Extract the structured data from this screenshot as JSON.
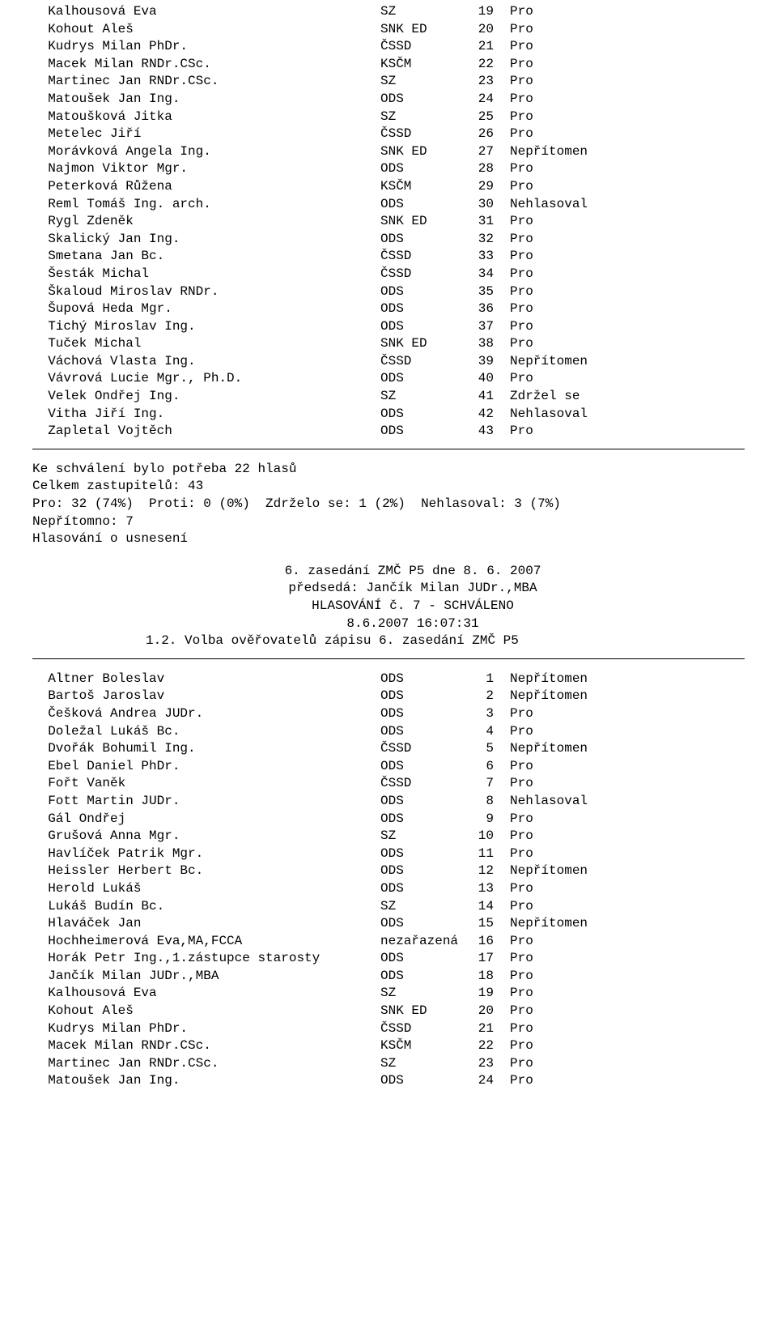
{
  "section1": {
    "rows": [
      {
        "name": "Kalhousová Eva",
        "party": "SZ",
        "num": "19",
        "vote": "Pro"
      },
      {
        "name": "Kohout Aleš",
        "party": "SNK ED",
        "num": "20",
        "vote": "Pro"
      },
      {
        "name": "Kudrys Milan PhDr.",
        "party": "ČSSD",
        "num": "21",
        "vote": "Pro"
      },
      {
        "name": "Macek Milan RNDr.CSc.",
        "party": "KSČM",
        "num": "22",
        "vote": "Pro"
      },
      {
        "name": "Martinec Jan RNDr.CSc.",
        "party": "SZ",
        "num": "23",
        "vote": "Pro"
      },
      {
        "name": "Matoušek Jan Ing.",
        "party": "ODS",
        "num": "24",
        "vote": "Pro"
      },
      {
        "name": "Matoušková Jitka",
        "party": "SZ",
        "num": "25",
        "vote": "Pro"
      },
      {
        "name": "Metelec Jiří",
        "party": "ČSSD",
        "num": "26",
        "vote": "Pro"
      },
      {
        "name": "Morávková Angela Ing.",
        "party": "SNK ED",
        "num": "27",
        "vote": "Nepřítomen"
      },
      {
        "name": "Najmon Viktor Mgr.",
        "party": "ODS",
        "num": "28",
        "vote": "Pro"
      },
      {
        "name": "Peterková Růžena",
        "party": "KSČM",
        "num": "29",
        "vote": "Pro"
      },
      {
        "name": "Reml Tomáš Ing. arch.",
        "party": "ODS",
        "num": "30",
        "vote": "Nehlasoval"
      },
      {
        "name": "Rygl Zdeněk",
        "party": "SNK ED",
        "num": "31",
        "vote": "Pro"
      },
      {
        "name": "Skalický Jan Ing.",
        "party": "ODS",
        "num": "32",
        "vote": "Pro"
      },
      {
        "name": "Smetana Jan Bc.",
        "party": "ČSSD",
        "num": "33",
        "vote": "Pro"
      },
      {
        "name": "Šesták Michal",
        "party": "ČSSD",
        "num": "34",
        "vote": "Pro"
      },
      {
        "name": "Škaloud Miroslav RNDr.",
        "party": "ODS",
        "num": "35",
        "vote": "Pro"
      },
      {
        "name": "Šupová Heda Mgr.",
        "party": "ODS",
        "num": "36",
        "vote": "Pro"
      },
      {
        "name": "Tichý Miroslav Ing.",
        "party": "ODS",
        "num": "37",
        "vote": "Pro"
      },
      {
        "name": "Tuček Michal",
        "party": "SNK ED",
        "num": "38",
        "vote": "Pro"
      },
      {
        "name": "Váchová Vlasta Ing.",
        "party": "ČSSD",
        "num": "39",
        "vote": "Nepřítomen"
      },
      {
        "name": "Vávrová Lucie Mgr., Ph.D.",
        "party": "ODS",
        "num": "40",
        "vote": "Pro"
      },
      {
        "name": "Velek Ondřej Ing.",
        "party": "SZ",
        "num": "41",
        "vote": "Zdržel se"
      },
      {
        "name": "Vitha Jiří Ing.",
        "party": "ODS",
        "num": "42",
        "vote": "Nehlasoval"
      },
      {
        "name": "Zapletal Vojtěch",
        "party": "ODS",
        "num": "43",
        "vote": "Pro"
      }
    ]
  },
  "summary": {
    "line1": "Ke schválení bylo potřeba 22 hlasů",
    "line2": "Celkem zastupitelů: 43",
    "line3": "Pro: 32 (74%)  Proti: 0 (0%)  Zdrželo se: 1 (2%)  Nehlasoval: 3 (7%)",
    "line4": "Nepřítomno: 7",
    "line5": "Hlasování o usnesení"
  },
  "header": {
    "l1": "6. zasedání ZMČ P5 dne 8. 6. 2007",
    "l2": "předsedá: Jančík Milan JUDr.,MBA",
    "l3": "HLASOVÁNÍ č. 7 - SCHVÁLENO",
    "l4": "8.6.2007 16:07:31",
    "l5": "1.2. Volba ověřovatelů zápisu 6. zasedání ZMČ P5"
  },
  "section2": {
    "rows": [
      {
        "name": "Altner Boleslav",
        "party": "ODS",
        "num": "1",
        "vote": "Nepřítomen"
      },
      {
        "name": "Bartoš Jaroslav",
        "party": "ODS",
        "num": "2",
        "vote": "Nepřítomen"
      },
      {
        "name": "Češková Andrea JUDr.",
        "party": "ODS",
        "num": "3",
        "vote": "Pro"
      },
      {
        "name": "Doležal Lukáš Bc.",
        "party": "ODS",
        "num": "4",
        "vote": "Pro"
      },
      {
        "name": "Dvořák Bohumil Ing.",
        "party": "ČSSD",
        "num": "5",
        "vote": "Nepřítomen"
      },
      {
        "name": "Ebel Daniel PhDr.",
        "party": "ODS",
        "num": "6",
        "vote": "Pro"
      },
      {
        "name": "Fořt Vaněk",
        "party": "ČSSD",
        "num": "7",
        "vote": "Pro"
      },
      {
        "name": "Fott Martin JUDr.",
        "party": "ODS",
        "num": "8",
        "vote": "Nehlasoval"
      },
      {
        "name": "Gál Ondřej",
        "party": "ODS",
        "num": "9",
        "vote": "Pro"
      },
      {
        "name": "Grušová Anna Mgr.",
        "party": "SZ",
        "num": "10",
        "vote": "Pro"
      },
      {
        "name": "Havlíček Patrik Mgr.",
        "party": "ODS",
        "num": "11",
        "vote": "Pro"
      },
      {
        "name": "Heissler Herbert Bc.",
        "party": "ODS",
        "num": "12",
        "vote": "Nepřítomen"
      },
      {
        "name": "Herold Lukáš",
        "party": "ODS",
        "num": "13",
        "vote": "Pro"
      },
      {
        "name": "Lukáš Budín Bc.",
        "party": "SZ",
        "num": "14",
        "vote": "Pro"
      },
      {
        "name": "Hlaváček Jan",
        "party": "ODS",
        "num": "15",
        "vote": "Nepřítomen"
      },
      {
        "name": "Hochheimerová Eva,MA,FCCA",
        "party": "nezařazená",
        "num": "16",
        "vote": "Pro"
      },
      {
        "name": "Horák Petr Ing.,1.zástupce starosty",
        "party": "ODS",
        "num": "17",
        "vote": "Pro"
      },
      {
        "name": "Jančík Milan JUDr.,MBA",
        "party": "ODS",
        "num": "18",
        "vote": "Pro"
      },
      {
        "name": "Kalhousová Eva",
        "party": "SZ",
        "num": "19",
        "vote": "Pro"
      },
      {
        "name": "Kohout Aleš",
        "party": "SNK ED",
        "num": "20",
        "vote": "Pro"
      },
      {
        "name": "Kudrys Milan PhDr.",
        "party": "ČSSD",
        "num": "21",
        "vote": "Pro"
      },
      {
        "name": "Macek Milan RNDr.CSc.",
        "party": "KSČM",
        "num": "22",
        "vote": "Pro"
      },
      {
        "name": "Martinec Jan RNDr.CSc.",
        "party": "SZ",
        "num": "23",
        "vote": "Pro"
      },
      {
        "name": "Matoušek Jan Ing.",
        "party": "ODS",
        "num": "24",
        "vote": "Pro"
      }
    ]
  }
}
